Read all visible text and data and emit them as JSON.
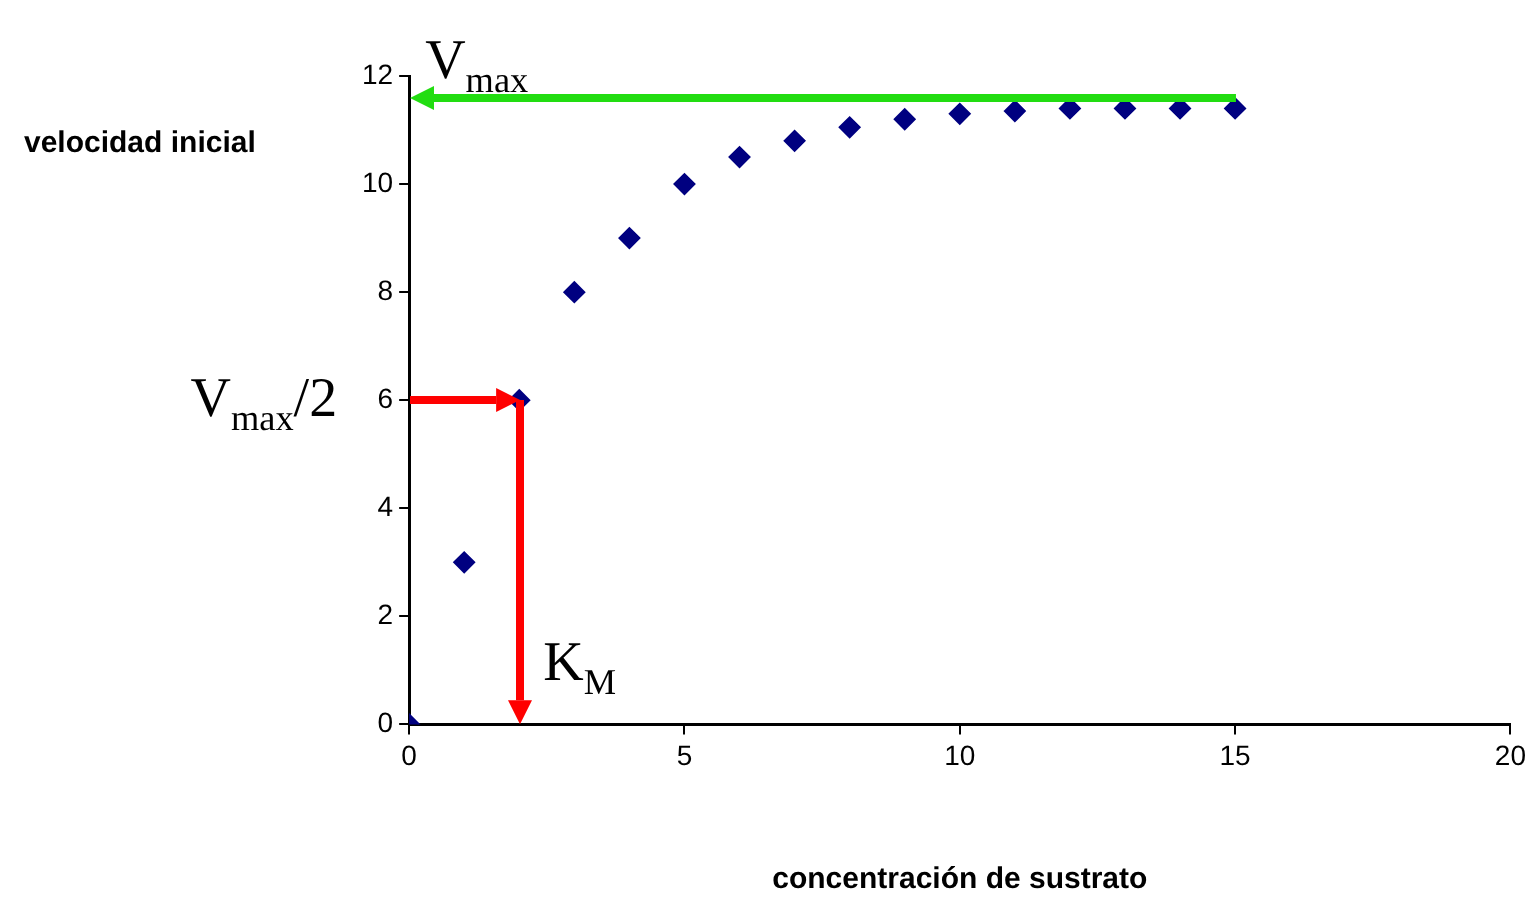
{
  "chart_data": {
    "type": "scatter",
    "xlabel": "concentración de sustrato",
    "ylabel": "velocidad inicial",
    "x": [
      0,
      1,
      2,
      3,
      4,
      5,
      6,
      7,
      8,
      9,
      10,
      11,
      12,
      13,
      14,
      15
    ],
    "series": [
      {
        "color": "#000080",
        "values": [
          0,
          3,
          6,
          8,
          9,
          10,
          10.5,
          10.8,
          11.05,
          11.2,
          11.3,
          11.35,
          11.4,
          11.4,
          11.4,
          11.4
        ]
      }
    ],
    "xlim": [
      0,
      20
    ],
    "xticks": [
      0,
      5,
      10,
      15,
      20
    ],
    "ylim": [
      0,
      12
    ],
    "yticks": [
      0,
      2,
      4,
      6,
      8,
      10,
      12
    ],
    "grid": false,
    "legend": false,
    "marker": "diamond",
    "ref_lines": [
      {
        "axis": "y",
        "value": 11.6,
        "label": "V$_{max}$",
        "color": "#22dd11"
      },
      {
        "axis": "y",
        "value": 6,
        "label": "V$_{max}$/2",
        "color": "#ff0000"
      },
      {
        "axis": "x",
        "value": 2,
        "label": "K$_{M}$",
        "color": "#ff0000"
      }
    ]
  }
}
